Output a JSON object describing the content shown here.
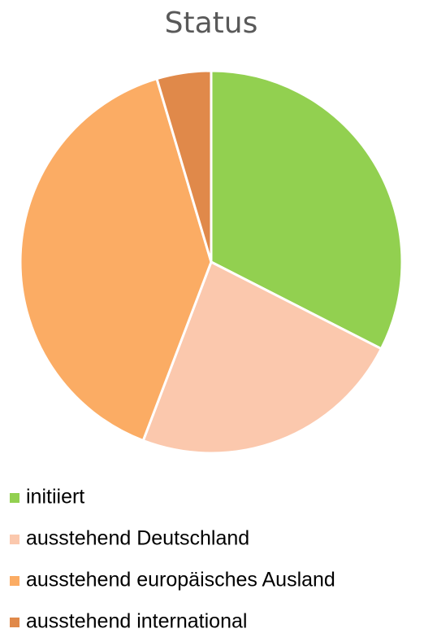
{
  "chart_data": {
    "type": "pie",
    "title": "Status",
    "categories": [
      "initiiert",
      "ausstehend Deutschland",
      "ausstehend europäisches Ausland",
      "ausstehend international"
    ],
    "values": [
      32.5,
      23.3,
      39.6,
      4.6
    ],
    "colors": [
      "#92d050",
      "#fbc8ad",
      "#fbac64",
      "#e0894a"
    ],
    "legend": "bottom"
  }
}
